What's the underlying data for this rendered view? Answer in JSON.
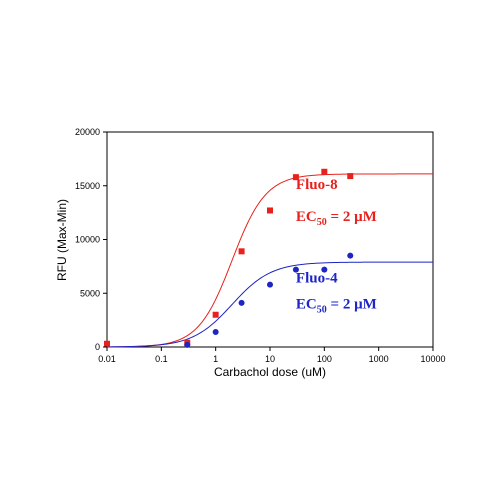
{
  "chart_data": {
    "type": "scatter",
    "xlabel": "Carbachol dose (uM)",
    "ylabel": "RFU (Max-Min)",
    "x_scale": "log",
    "xlim": [
      0.01,
      10000
    ],
    "ylim": [
      0,
      20000
    ],
    "x_ticks": [
      {
        "value": 0.01,
        "label": "0.01"
      },
      {
        "value": 0.1,
        "label": "0.1"
      },
      {
        "value": 1,
        "label": "1"
      },
      {
        "value": 10,
        "label": "10"
      },
      {
        "value": 100,
        "label": "100"
      },
      {
        "value": 1000,
        "label": "1000"
      },
      {
        "value": 10000,
        "label": "10000"
      }
    ],
    "y_ticks": [
      {
        "value": 0,
        "label": "0"
      },
      {
        "value": 5000,
        "label": "5000"
      },
      {
        "value": 10000,
        "label": "10000"
      },
      {
        "value": 15000,
        "label": "15000"
      },
      {
        "value": 20000,
        "label": "20000"
      }
    ],
    "grid": false,
    "series": [
      {
        "key": "fluo8",
        "color": "#e8211d",
        "marker": "square",
        "x": [
          0.01,
          0.3,
          1,
          3,
          10,
          30,
          100,
          300
        ],
        "y": [
          300,
          400,
          3000,
          8900,
          12700,
          15800,
          16300,
          15900
        ],
        "fit": {
          "bottom": 0,
          "top": 16100,
          "ec50": 2,
          "hill": 1.4
        }
      },
      {
        "key": "fluo4",
        "color": "#1d25c4",
        "marker": "circle",
        "x": [
          0.3,
          1,
          3,
          10,
          30,
          100,
          300
        ],
        "y": [
          200,
          1400,
          4100,
          5800,
          7200,
          7200,
          8500
        ],
        "fit": {
          "bottom": 0,
          "top": 7900,
          "ec50": 2,
          "hill": 1.2
        }
      }
    ],
    "annotations": [
      {
        "key": "fluo8_name",
        "series": "fluo8",
        "text": "Fluo-8",
        "x": 30,
        "y": 14700
      },
      {
        "key": "fluo8_ec",
        "series": "fluo8",
        "prefix": "EC",
        "sub": "50",
        "suffix": " = 2 μM",
        "x": 30,
        "y": 11700
      },
      {
        "key": "fluo4_name",
        "series": "fluo4",
        "text": "Fluo-4",
        "x": 30,
        "y": 6000
      },
      {
        "key": "fluo4_ec",
        "series": "fluo4",
        "prefix": "EC",
        "sub": "50",
        "suffix": " = 2 μM",
        "x": 30,
        "y": 3600
      }
    ]
  }
}
